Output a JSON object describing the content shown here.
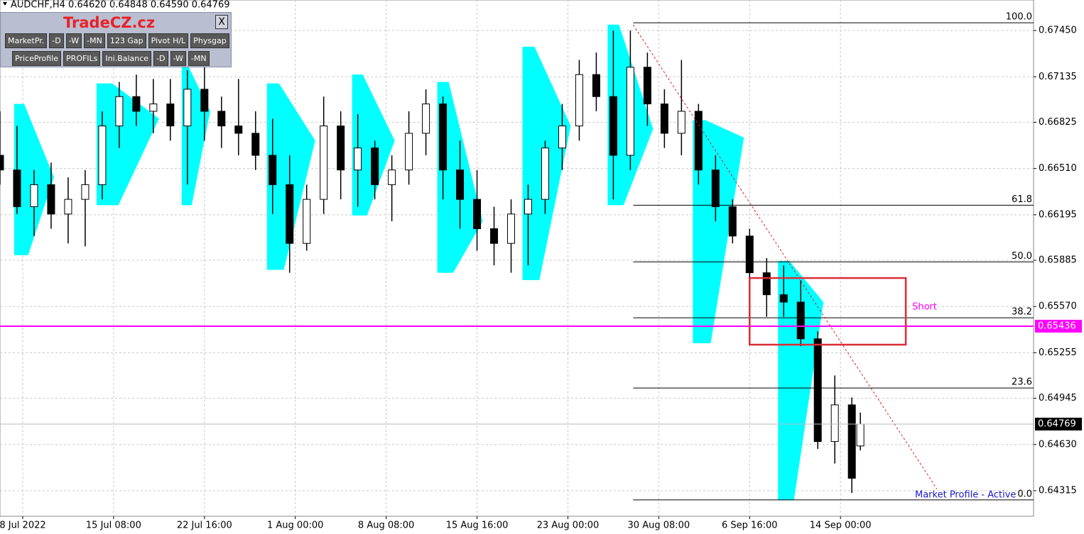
{
  "chart_data": {
    "type": "candlestick",
    "header": "AUDCHF,H4  0.64620 0.64848 0.64590 0.64769",
    "panel": {
      "title": "TradeCZ.cz",
      "close": "X",
      "buttons": [
        [
          "MarketPr.",
          "-D",
          "-W",
          "-MN",
          "123 Gap",
          "Pivot H/L",
          "Physgap"
        ],
        [
          "PriceProfile",
          "PROFILs",
          "Ini.Balance",
          "-D",
          "-W",
          "-MN"
        ]
      ]
    },
    "xlim": [
      0,
      364
    ],
    "xticks": [
      {
        "value": 8,
        "label": "8 Jul 2022"
      },
      {
        "value": 40,
        "label": "15 Jul 08:00"
      },
      {
        "value": 72,
        "label": "22 Jul 16:00"
      },
      {
        "value": 104,
        "label": "1 Aug 00:00"
      },
      {
        "value": 136,
        "label": "8 Aug 08:00"
      },
      {
        "value": 168,
        "label": "15 Aug 16:00"
      },
      {
        "value": 200,
        "label": "23 Aug 00:00"
      },
      {
        "value": 232,
        "label": "30 Aug 08:00"
      },
      {
        "value": 264,
        "label": "6 Sep 16:00"
      },
      {
        "value": 296,
        "label": "14 Sep 00:00"
      }
    ],
    "ylim": [
      0.64141,
      0.67658
    ],
    "yticks": [
      {
        "value": 0.6745,
        "label": "0.67450"
      },
      {
        "value": 0.67135,
        "label": "0.67135"
      },
      {
        "value": 0.66825,
        "label": "0.66825"
      },
      {
        "value": 0.6651,
        "label": "0.66510"
      },
      {
        "value": 0.66195,
        "label": "0.66195"
      },
      {
        "value": 0.65885,
        "label": "0.65885"
      },
      {
        "value": 0.6557,
        "label": "0.65570"
      },
      {
        "value": 0.65255,
        "label": "0.65255"
      },
      {
        "value": 0.64945,
        "label": "0.64945"
      },
      {
        "value": 0.6463,
        "label": "0.64630"
      },
      {
        "value": 0.64315,
        "label": "0.64315"
      }
    ],
    "grid": true,
    "candles": {
      "x": [
        0,
        6,
        12,
        18,
        24,
        30,
        36,
        42,
        48,
        54,
        60,
        66,
        72,
        78,
        84,
        90,
        96,
        102,
        108,
        114,
        120,
        126,
        132,
        138,
        144,
        150,
        156,
        162,
        168,
        174,
        180,
        186,
        192,
        198,
        204,
        210,
        216,
        222,
        228,
        234,
        240,
        246,
        252,
        258,
        264,
        270,
        276,
        282,
        288,
        294,
        300,
        303
      ],
      "open": [
        0.666,
        0.665,
        0.6625,
        0.664,
        0.662,
        0.663,
        0.664,
        0.668,
        0.67,
        0.669,
        0.6695,
        0.668,
        0.6705,
        0.669,
        0.668,
        0.6675,
        0.666,
        0.664,
        0.66,
        0.663,
        0.668,
        0.665,
        0.6665,
        0.664,
        0.665,
        0.6675,
        0.6695,
        0.665,
        0.663,
        0.661,
        0.66,
        0.662,
        0.663,
        0.6665,
        0.668,
        0.6715,
        0.67,
        0.666,
        0.672,
        0.6695,
        0.6675,
        0.669,
        0.665,
        0.6625,
        0.6605,
        0.658,
        0.6565,
        0.656,
        0.6535,
        0.6465,
        0.649,
        0.6462
      ],
      "high": [
        0.669,
        0.668,
        0.665,
        0.6655,
        0.6645,
        0.665,
        0.669,
        0.671,
        0.6715,
        0.6712,
        0.6712,
        0.6718,
        0.672,
        0.67,
        0.6712,
        0.669,
        0.6685,
        0.666,
        0.664,
        0.67,
        0.669,
        0.6688,
        0.667,
        0.666,
        0.669,
        0.6705,
        0.67,
        0.667,
        0.665,
        0.6625,
        0.663,
        0.664,
        0.667,
        0.6695,
        0.6725,
        0.673,
        0.6745,
        0.6745,
        0.673,
        0.6705,
        0.6725,
        0.6695,
        0.666,
        0.663,
        0.661,
        0.659,
        0.6585,
        0.6575,
        0.654,
        0.651,
        0.6495,
        0.64848
      ],
      "low": [
        0.664,
        0.662,
        0.6605,
        0.661,
        0.66,
        0.6598,
        0.663,
        0.6665,
        0.668,
        0.6675,
        0.667,
        0.664,
        0.667,
        0.6665,
        0.666,
        0.665,
        0.662,
        0.658,
        0.6595,
        0.662,
        0.663,
        0.6625,
        0.663,
        0.6615,
        0.664,
        0.666,
        0.663,
        0.661,
        0.6595,
        0.6585,
        0.658,
        0.6585,
        0.662,
        0.665,
        0.667,
        0.669,
        0.663,
        0.665,
        0.668,
        0.6665,
        0.666,
        0.664,
        0.6615,
        0.66,
        0.6575,
        0.655,
        0.655,
        0.653,
        0.646,
        0.645,
        0.643,
        0.6459
      ],
      "close": [
        0.665,
        0.6625,
        0.664,
        0.662,
        0.663,
        0.664,
        0.668,
        0.67,
        0.669,
        0.6695,
        0.668,
        0.6705,
        0.669,
        0.668,
        0.6675,
        0.666,
        0.664,
        0.66,
        0.663,
        0.668,
        0.665,
        0.6665,
        0.664,
        0.665,
        0.6675,
        0.6695,
        0.665,
        0.663,
        0.661,
        0.66,
        0.662,
        0.663,
        0.6665,
        0.668,
        0.6715,
        0.67,
        0.666,
        0.672,
        0.6695,
        0.6675,
        0.669,
        0.665,
        0.6625,
        0.6605,
        0.658,
        0.6565,
        0.656,
        0.6535,
        0.6465,
        0.649,
        0.644,
        0.64769
      ]
    },
    "profiles": {
      "color": "#00ffff",
      "x": [
        5,
        34,
        64,
        94,
        124,
        154,
        184,
        214,
        244,
        274
      ],
      "low": [
        0.6592,
        0.6626,
        0.6626,
        0.6582,
        0.6619,
        0.658,
        0.6575,
        0.6626,
        0.6532,
        0.6425
      ],
      "high": [
        0.6695,
        0.6709,
        0.672,
        0.6709,
        0.6715,
        0.671,
        0.6734,
        0.6749,
        0.6684,
        0.6588
      ],
      "poc": [
        0.6645,
        0.6685,
        0.669,
        0.667,
        0.667,
        0.6615,
        0.668,
        0.6678,
        0.6672,
        0.656
      ],
      "width": [
        14,
        22,
        10,
        17,
        15,
        16,
        17,
        16,
        18,
        16
      ]
    },
    "fibonacci": {
      "x_start": 223,
      "levels": [
        {
          "label": "100.0",
          "price": 0.67503
        },
        {
          "label": "61.8",
          "price": 0.6626
        },
        {
          "label": "50.0",
          "price": 0.65874
        },
        {
          "label": "38.2",
          "price": 0.65493
        },
        {
          "label": "23.6",
          "price": 0.65015
        },
        {
          "label": "0.0",
          "price": 0.64253
        }
      ]
    },
    "trendline": {
      "x": [
        223,
        330
      ],
      "y": [
        0.67489,
        0.64326
      ],
      "color": "#dd2222"
    },
    "zone": {
      "label": "Short",
      "x": [
        264,
        319
      ],
      "y": [
        0.6531,
        0.65764
      ],
      "color": "#dd2b36",
      "label_color": "#ff00ff"
    },
    "level_line": {
      "value": 0.65436,
      "color": "#ff00ff"
    },
    "price_line": {
      "value": 0.64769,
      "color": "#000000"
    },
    "status": "Market Profile - Active"
  }
}
